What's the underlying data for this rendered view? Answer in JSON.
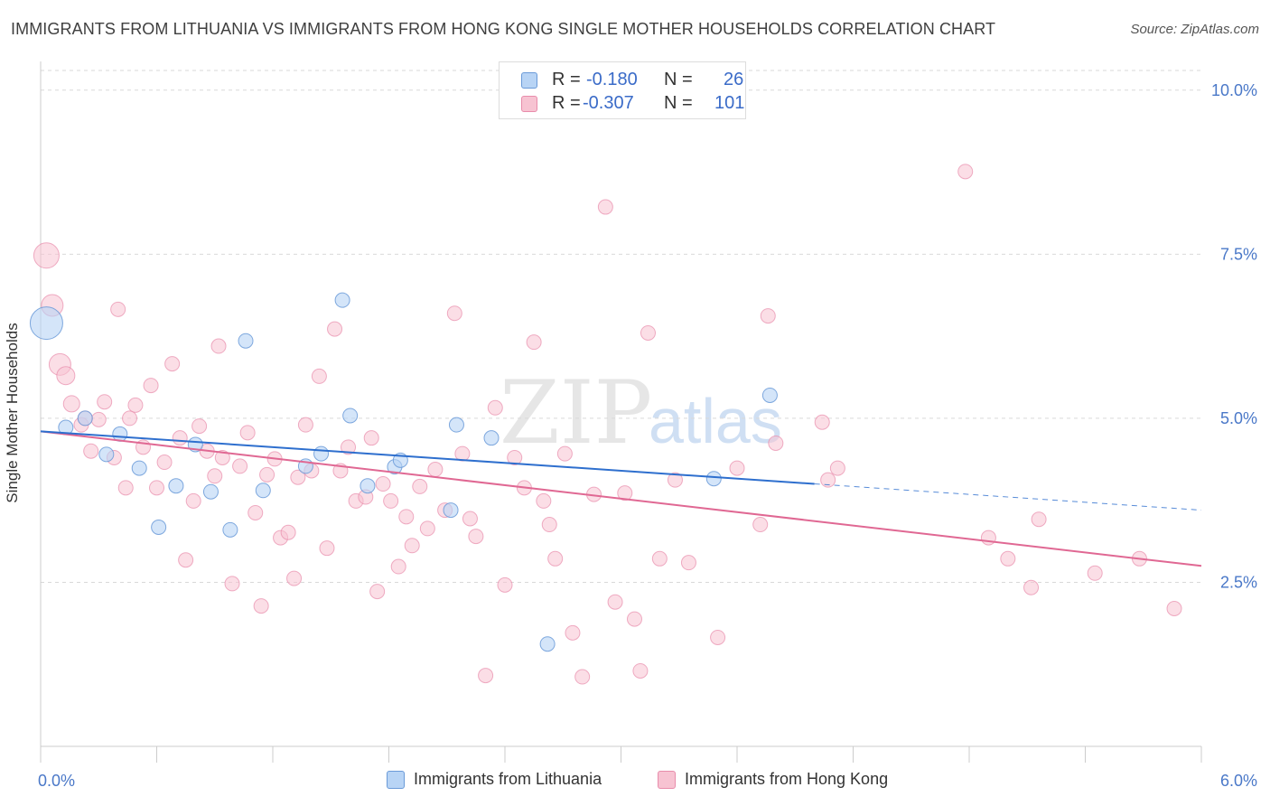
{
  "header": {
    "title": "IMMIGRANTS FROM LITHUANIA VS IMMIGRANTS FROM HONG KONG SINGLE MOTHER HOUSEHOLDS CORRELATION CHART",
    "source": "Source: ZipAtlas.com"
  },
  "watermark": {
    "part1": "ZIP",
    "part2": "atlas"
  },
  "legend_top": {
    "rows": [
      {
        "r_label": "R =",
        "r_value": "-0.180",
        "n_label": "N =",
        "n_value": "26"
      },
      {
        "r_label": "R =",
        "r_value": "-0.307",
        "n_label": "N =",
        "n_value": "101"
      }
    ]
  },
  "legend_bottom": {
    "items": [
      {
        "label": "Immigrants from Lithuania"
      },
      {
        "label": "Immigrants from Hong Kong"
      }
    ]
  },
  "colors": {
    "blue_fill": "#b8d4f5",
    "blue_stroke": "#6a9ad8",
    "blue_line": "#2e6fce",
    "pink_fill": "#f7c3d2",
    "pink_stroke": "#e88cab",
    "pink_line": "#e06893",
    "tick_label": "#4a78c8",
    "grid": "#d9d9d9"
  },
  "chart_data": {
    "type": "scatter",
    "title": "IMMIGRANTS FROM LITHUANIA VS IMMIGRANTS FROM HONG KONG SINGLE MOTHER HOUSEHOLDS CORRELATION CHART",
    "xlabel": "",
    "ylabel": "Single Mother Households",
    "xlim": [
      0,
      6
    ],
    "ylim": [
      0,
      10.3
    ],
    "x_tick_labels": [
      {
        "value": 0,
        "label": "0.0%"
      },
      {
        "value": 6,
        "label": "6.0%"
      }
    ],
    "y_tick_labels": [
      {
        "value": 2.5,
        "label": "2.5%"
      },
      {
        "value": 5.0,
        "label": "5.0%"
      },
      {
        "value": 7.5,
        "label": "7.5%"
      },
      {
        "value": 10.0,
        "label": "10.0%"
      }
    ],
    "grid": true,
    "legend_position": "top-center",
    "series": [
      {
        "name": "Immigrants from Lithuania",
        "color": "blue",
        "r": -0.18,
        "n": 26,
        "trend": {
          "x0": 0.0,
          "y0": 4.8,
          "x1": 4.0,
          "y1": 4.0,
          "dash_to_x": 6.0,
          "dash_to_y": 3.6
        },
        "points": [
          [
            0.03,
            6.45,
            18
          ],
          [
            0.13,
            4.86,
            8
          ],
          [
            0.23,
            5.0,
            8
          ],
          [
            0.34,
            4.45,
            8
          ],
          [
            0.41,
            4.76,
            8
          ],
          [
            0.51,
            4.24,
            8
          ],
          [
            0.61,
            3.34,
            8
          ],
          [
            0.7,
            3.97,
            8
          ],
          [
            0.8,
            4.6,
            8
          ],
          [
            0.88,
            3.88,
            8
          ],
          [
            0.98,
            3.3,
            8
          ],
          [
            1.06,
            6.18,
            8
          ],
          [
            1.15,
            3.9,
            8
          ],
          [
            1.37,
            4.27,
            8
          ],
          [
            1.45,
            4.46,
            8
          ],
          [
            1.56,
            6.8,
            8
          ],
          [
            1.6,
            5.04,
            8
          ],
          [
            1.69,
            3.97,
            8
          ],
          [
            1.83,
            4.26,
            8
          ],
          [
            1.86,
            4.36,
            8
          ],
          [
            2.12,
            3.6,
            8
          ],
          [
            2.15,
            4.9,
            8
          ],
          [
            2.33,
            4.7,
            8
          ],
          [
            2.62,
            1.56,
            8
          ],
          [
            3.48,
            4.08,
            8
          ],
          [
            3.77,
            5.35,
            8
          ]
        ]
      },
      {
        "name": "Immigrants from Hong Kong",
        "color": "pink",
        "r": -0.307,
        "n": 101,
        "trend": {
          "x0": 0.0,
          "y0": 4.8,
          "x1": 6.0,
          "y1": 2.75
        },
        "points": [
          [
            0.03,
            7.48,
            14
          ],
          [
            0.06,
            6.72,
            12
          ],
          [
            0.1,
            5.82,
            12
          ],
          [
            0.13,
            5.65,
            10
          ],
          [
            0.16,
            5.22,
            9
          ],
          [
            0.21,
            4.9,
            8
          ],
          [
            0.23,
            5.0,
            8
          ],
          [
            0.26,
            4.5,
            8
          ],
          [
            0.3,
            4.98,
            8
          ],
          [
            0.33,
            5.25,
            8
          ],
          [
            0.38,
            4.4,
            8
          ],
          [
            0.4,
            6.66,
            8
          ],
          [
            0.44,
            3.94,
            8
          ],
          [
            0.46,
            5.0,
            8
          ],
          [
            0.49,
            5.2,
            8
          ],
          [
            0.53,
            4.56,
            8
          ],
          [
            0.57,
            5.5,
            8
          ],
          [
            0.6,
            3.94,
            8
          ],
          [
            0.64,
            4.33,
            8
          ],
          [
            0.68,
            5.83,
            8
          ],
          [
            0.72,
            4.7,
            8
          ],
          [
            0.75,
            2.84,
            8
          ],
          [
            0.79,
            3.74,
            8
          ],
          [
            0.82,
            4.88,
            8
          ],
          [
            0.86,
            4.5,
            8
          ],
          [
            0.9,
            4.12,
            8
          ],
          [
            0.92,
            6.1,
            8
          ],
          [
            0.94,
            4.4,
            8
          ],
          [
            0.99,
            2.48,
            8
          ],
          [
            1.03,
            4.27,
            8
          ],
          [
            1.07,
            4.78,
            8
          ],
          [
            1.11,
            3.56,
            8
          ],
          [
            1.14,
            2.14,
            8
          ],
          [
            1.17,
            4.14,
            8
          ],
          [
            1.21,
            4.38,
            8
          ],
          [
            1.24,
            3.18,
            8
          ],
          [
            1.28,
            3.26,
            8
          ],
          [
            1.31,
            2.56,
            8
          ],
          [
            1.33,
            4.1,
            8
          ],
          [
            1.37,
            4.9,
            8
          ],
          [
            1.4,
            4.2,
            8
          ],
          [
            1.44,
            5.64,
            8
          ],
          [
            1.48,
            3.02,
            8
          ],
          [
            1.52,
            6.36,
            8
          ],
          [
            1.55,
            4.2,
            8
          ],
          [
            1.59,
            4.56,
            8
          ],
          [
            1.63,
            3.74,
            8
          ],
          [
            1.68,
            3.8,
            8
          ],
          [
            1.71,
            4.7,
            8
          ],
          [
            1.74,
            2.36,
            8
          ],
          [
            1.77,
            4.0,
            8
          ],
          [
            1.81,
            3.74,
            8
          ],
          [
            1.85,
            2.74,
            8
          ],
          [
            1.89,
            3.5,
            8
          ],
          [
            1.92,
            3.06,
            8
          ],
          [
            1.96,
            3.96,
            8
          ],
          [
            2.0,
            3.32,
            8
          ],
          [
            2.04,
            4.22,
            8
          ],
          [
            2.09,
            3.6,
            8
          ],
          [
            2.14,
            6.6,
            8
          ],
          [
            2.18,
            4.46,
            8
          ],
          [
            2.22,
            3.47,
            8
          ],
          [
            2.25,
            3.2,
            8
          ],
          [
            2.3,
            1.08,
            8
          ],
          [
            2.35,
            5.16,
            8
          ],
          [
            2.4,
            2.46,
            8
          ],
          [
            2.45,
            4.4,
            8
          ],
          [
            2.5,
            3.94,
            8
          ],
          [
            2.55,
            6.16,
            8
          ],
          [
            2.6,
            3.74,
            8
          ],
          [
            2.63,
            3.38,
            8
          ],
          [
            2.66,
            2.86,
            8
          ],
          [
            2.71,
            4.46,
            8
          ],
          [
            2.75,
            1.73,
            8
          ],
          [
            2.8,
            1.06,
            8
          ],
          [
            2.86,
            3.84,
            8
          ],
          [
            2.92,
            8.22,
            8
          ],
          [
            2.97,
            2.2,
            8
          ],
          [
            3.02,
            3.86,
            8
          ],
          [
            3.07,
            1.94,
            8
          ],
          [
            3.1,
            1.15,
            8
          ],
          [
            3.14,
            6.3,
            8
          ],
          [
            3.2,
            2.86,
            8
          ],
          [
            3.28,
            4.06,
            8
          ],
          [
            3.35,
            2.8,
            8
          ],
          [
            3.5,
            1.66,
            8
          ],
          [
            3.6,
            4.24,
            8
          ],
          [
            3.72,
            3.38,
            8
          ],
          [
            3.76,
            6.56,
            8
          ],
          [
            3.8,
            4.62,
            8
          ],
          [
            4.04,
            4.94,
            8
          ],
          [
            4.07,
            4.06,
            8
          ],
          [
            4.12,
            4.24,
            8
          ],
          [
            4.78,
            8.76,
            8
          ],
          [
            4.9,
            3.18,
            8
          ],
          [
            5.0,
            2.86,
            8
          ],
          [
            5.12,
            2.42,
            8
          ],
          [
            5.16,
            3.46,
            8
          ],
          [
            5.45,
            2.64,
            8
          ],
          [
            5.68,
            2.86,
            8
          ],
          [
            5.86,
            2.1,
            8
          ]
        ]
      }
    ]
  }
}
